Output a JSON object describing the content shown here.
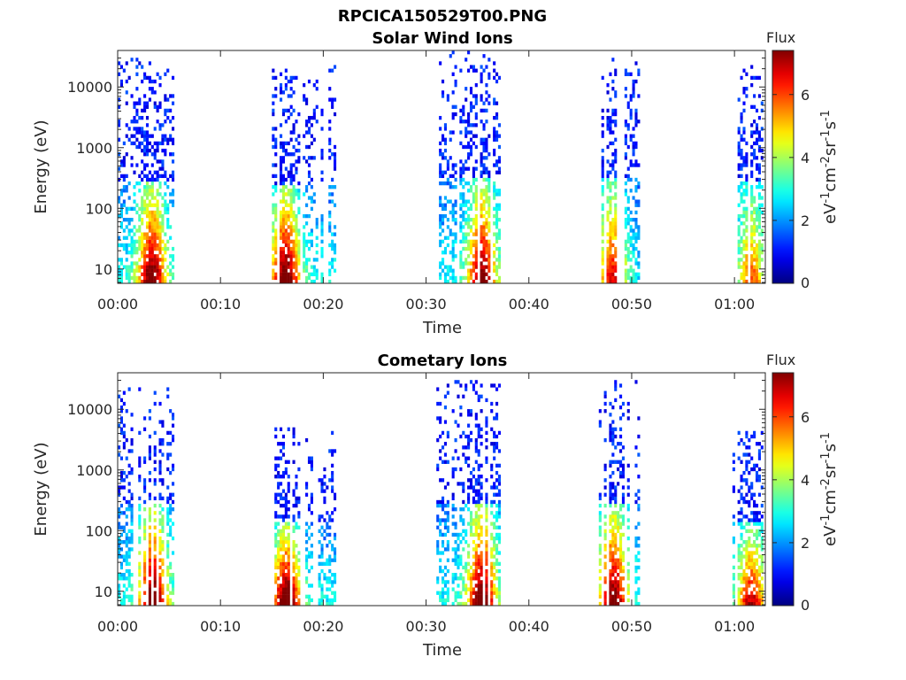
{
  "figure": {
    "title": "RPCICA150529T00.PNG"
  },
  "colorbar_labels": {
    "title": "Flux",
    "unit_base_1": "eV",
    "unit_exp_1": "-1",
    "unit_base_2": "cm",
    "unit_exp_2": "-2",
    "unit_base_3": "sr",
    "unit_exp_3": "-1",
    "unit_base_4": "s",
    "unit_exp_4": "-1"
  },
  "chart_data": [
    {
      "type": "heatmap",
      "title": "Solar Wind Ions",
      "xlabel": "Time",
      "ylabel": "Energy (eV)",
      "xlim_minutes": [
        0,
        63
      ],
      "ylim": [
        5.8,
        40000
      ],
      "yscale": "log",
      "x_ticks": [
        {
          "minutes": 0,
          "label": "00:00"
        },
        {
          "minutes": 10,
          "label": "00:10"
        },
        {
          "minutes": 20,
          "label": "00:20"
        },
        {
          "minutes": 30,
          "label": "00:30"
        },
        {
          "minutes": 40,
          "label": "00:40"
        },
        {
          "minutes": 50,
          "label": "00:50"
        },
        {
          "minutes": 60,
          "label": "01:00"
        }
      ],
      "y_ticks": [
        {
          "value": 10,
          "label": "10"
        },
        {
          "value": 100,
          "label": "100"
        },
        {
          "value": 1000,
          "label": "1000"
        },
        {
          "value": 10000,
          "label": "10000"
        }
      ],
      "colorbar": {
        "ticks": [
          "0",
          "2",
          "4",
          "6"
        ],
        "range": [
          0,
          7.4
        ]
      },
      "bursts": [
        {
          "start_min": 0.0,
          "end_min": 5.3,
          "peak_min": 3.2,
          "max_energy": 28000,
          "peak_flux": 7.0
        },
        {
          "start_min": 15.0,
          "end_min": 21.2,
          "peak_min": 16.2,
          "max_energy": 22000,
          "peak_flux": 7.2
        },
        {
          "start_min": 31.0,
          "end_min": 37.2,
          "peak_min": 35.3,
          "max_energy": 35000,
          "peak_flux": 6.9
        },
        {
          "start_min": 46.8,
          "end_min": 50.6,
          "peak_min": 48.0,
          "max_energy": 32000,
          "peak_flux": 5.8
        },
        {
          "start_min": 59.8,
          "end_min": 62.7,
          "peak_min": 61.5,
          "max_energy": 25000,
          "peak_flux": 5.0
        }
      ]
    },
    {
      "type": "heatmap",
      "title": "Cometary Ions",
      "xlabel": "Time",
      "ylabel": "Energy (eV)",
      "xlim_minutes": [
        0,
        63
      ],
      "ylim": [
        5.8,
        40000
      ],
      "yscale": "log",
      "x_ticks": [
        {
          "minutes": 0,
          "label": "00:00"
        },
        {
          "minutes": 10,
          "label": "00:10"
        },
        {
          "minutes": 20,
          "label": "00:20"
        },
        {
          "minutes": 30,
          "label": "00:30"
        },
        {
          "minutes": 40,
          "label": "00:40"
        },
        {
          "minutes": 50,
          "label": "00:50"
        },
        {
          "minutes": 60,
          "label": "01:00"
        }
      ],
      "y_ticks": [
        {
          "value": 10,
          "label": "10"
        },
        {
          "value": 100,
          "label": "100"
        },
        {
          "value": 1000,
          "label": "1000"
        },
        {
          "value": 10000,
          "label": "10000"
        }
      ],
      "colorbar": {
        "ticks": [
          "0",
          "2",
          "4",
          "6"
        ],
        "range": [
          0,
          7.4
        ]
      },
      "bursts": [
        {
          "start_min": 0.0,
          "end_min": 5.3,
          "peak_min": 3.3,
          "max_energy": 25000,
          "peak_flux": 7.2
        },
        {
          "start_min": 15.0,
          "end_min": 21.2,
          "peak_min": 16.3,
          "max_energy": 5000,
          "peak_flux": 7.4
        },
        {
          "start_min": 31.0,
          "end_min": 37.2,
          "peak_min": 35.3,
          "max_energy": 28000,
          "peak_flux": 7.3
        },
        {
          "start_min": 46.8,
          "end_min": 50.6,
          "peak_min": 48.1,
          "max_energy": 30000,
          "peak_flux": 7.0
        },
        {
          "start_min": 59.8,
          "end_min": 62.7,
          "peak_min": 61.5,
          "max_energy": 5000,
          "peak_flux": 6.2
        }
      ]
    }
  ]
}
